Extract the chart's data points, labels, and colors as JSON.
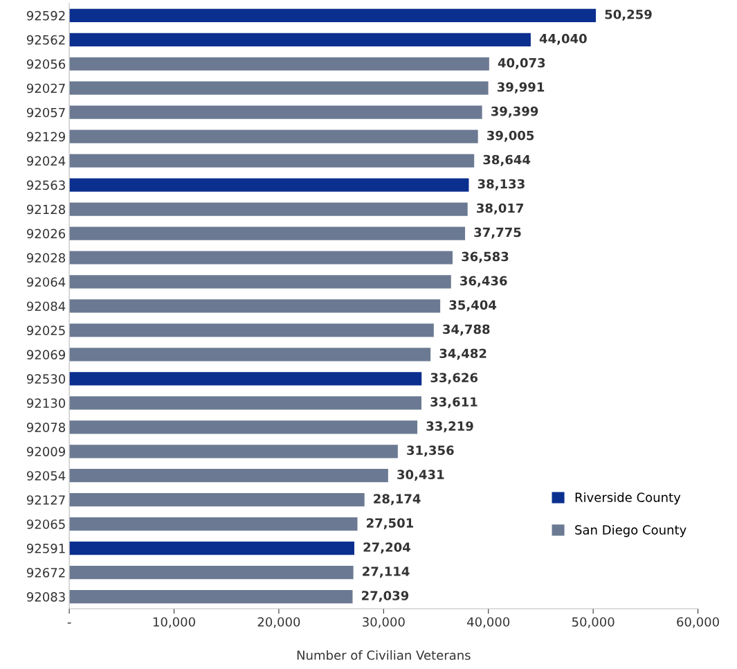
{
  "chart_data": {
    "type": "bar",
    "orientation": "horizontal",
    "xlabel": "Number of Civilian Veterans",
    "categories": [
      "92592",
      "92562",
      "92056",
      "92027",
      "92057",
      "92129",
      "92024",
      "92563",
      "92128",
      "92026",
      "92028",
      "92064",
      "92084",
      "92025",
      "92069",
      "92530",
      "92130",
      "92078",
      "92009",
      "92054",
      "92127",
      "92065",
      "92591",
      "92672",
      "92083"
    ],
    "series": [
      {
        "name": "Riverside County",
        "color": "#0b2f8f",
        "values": [
          50259,
          44040,
          null,
          null,
          null,
          null,
          null,
          38133,
          null,
          null,
          null,
          null,
          null,
          null,
          null,
          33626,
          null,
          null,
          null,
          null,
          null,
          null,
          27204,
          null,
          null
        ],
        "value_labels": [
          "50,259",
          "44,040",
          null,
          null,
          null,
          null,
          null,
          "38,133",
          null,
          null,
          null,
          null,
          null,
          null,
          null,
          "33,626",
          null,
          null,
          null,
          null,
          null,
          null,
          "27,204",
          null,
          null
        ]
      },
      {
        "name": "San Diego County",
        "color": "#6b7a92",
        "values": [
          null,
          null,
          40073,
          39991,
          39399,
          39005,
          38644,
          null,
          38017,
          37775,
          36583,
          36436,
          35404,
          34788,
          34482,
          null,
          33611,
          33219,
          31356,
          30431,
          28174,
          27501,
          null,
          27114,
          27039
        ],
        "value_labels": [
          null,
          null,
          "40,073",
          "39,991",
          "39,399",
          "39,005",
          "38,644",
          null,
          "38,017",
          "37,775",
          "36,583",
          "36,436",
          "35,404",
          "34,788",
          "34,482",
          null,
          "33,611",
          "33,219",
          "31,356",
          "30,431",
          "28,174",
          "27,501",
          null,
          "27,114",
          "27,039"
        ]
      }
    ],
    "xlim": [
      0,
      60000
    ],
    "xticks": [
      {
        "value": 0,
        "label": "-"
      },
      {
        "value": 10000,
        "label": "10,000"
      },
      {
        "value": 20000,
        "label": "20,000"
      },
      {
        "value": 30000,
        "label": "30,000"
      },
      {
        "value": 40000,
        "label": "40,000"
      },
      {
        "value": 50000,
        "label": "50,000"
      },
      {
        "value": 60000,
        "label": "60,000"
      }
    ],
    "grid": false,
    "legend": "bottom right"
  }
}
